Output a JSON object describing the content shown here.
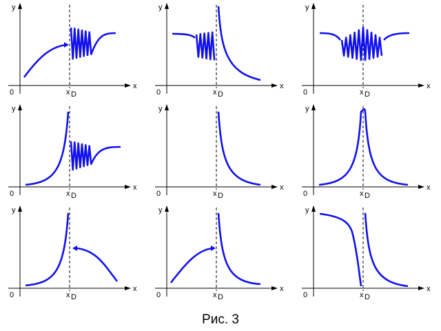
{
  "axes": {
    "x_label": "x",
    "y_label": "y",
    "origin_label": "0",
    "xd_label": "x",
    "xd_sub": "D"
  },
  "caption": "Рис. 3",
  "colors": {
    "curve": "#1010ee",
    "axis": "#000000"
  },
  "panels": [
    {
      "id": "p1",
      "description_label": ""
    },
    {
      "id": "p2"
    },
    {
      "id": "p3"
    },
    {
      "id": "p4"
    },
    {
      "id": "p5"
    },
    {
      "id": "p6"
    },
    {
      "id": "p7"
    },
    {
      "id": "p8"
    },
    {
      "id": "p9"
    }
  ]
}
